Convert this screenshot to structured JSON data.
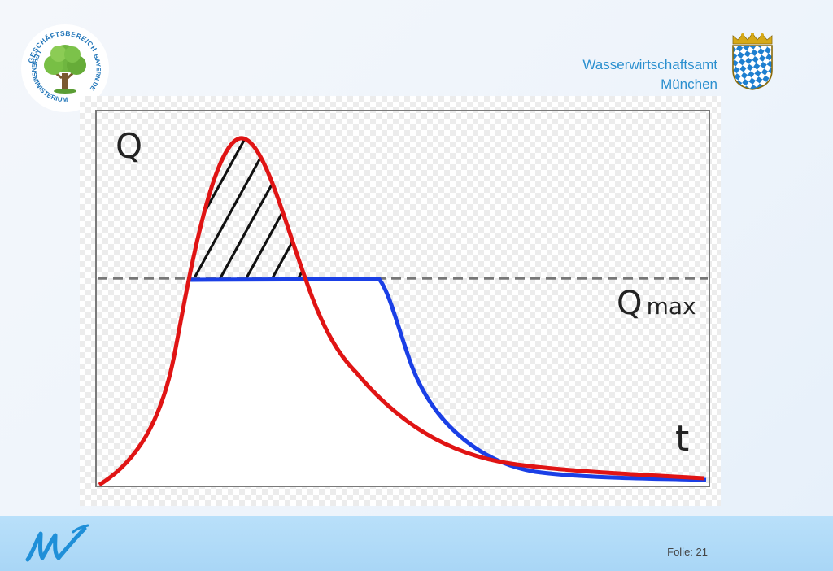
{
  "header": {
    "org_line1": "Wasserwirtschaftsamt",
    "org_line2": "München"
  },
  "logo_left": {
    "ring_text_top": "GESCHÄFTSBEREICH",
    "ring_text_left": "LEBENSMINISTERIUM",
    "ring_text_right": "BAYERN.DE",
    "icon": "tree-icon"
  },
  "crest": {
    "icon": "bavarian-crest-icon",
    "colors": [
      "#1e7fd0",
      "#ffffff",
      "#d6a917"
    ]
  },
  "diagram": {
    "y_label": "Q",
    "threshold_label_main": "Q",
    "threshold_label_sub": "max",
    "x_label": "t",
    "colors": {
      "natural_flood": "#e01414",
      "capped_flow": "#1a3fe6",
      "threshold": "#777777",
      "hatch": "#111111"
    }
  },
  "footer": {
    "slide_number": "Folie: 21",
    "logo_icon": "water-w-logo-icon"
  }
}
